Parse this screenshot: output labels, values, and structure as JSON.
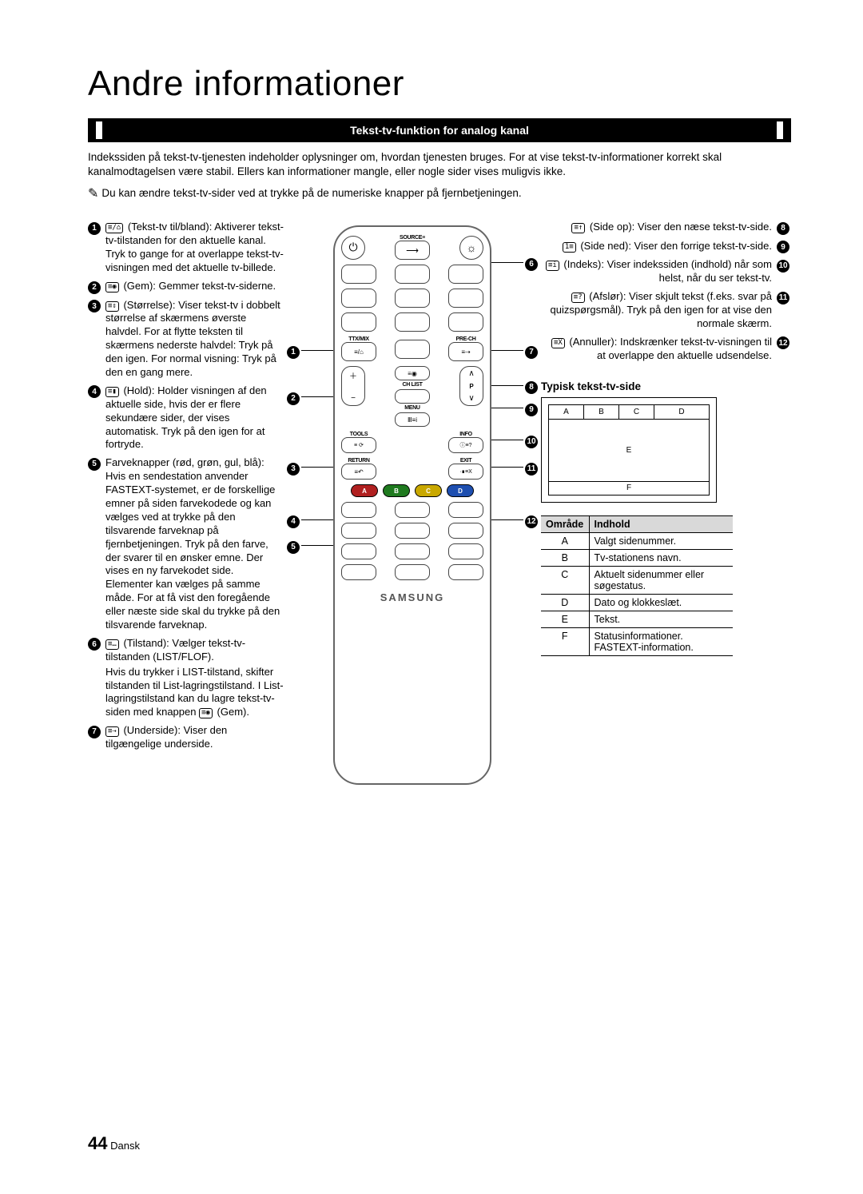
{
  "page": {
    "title": "Andre informationer",
    "section_header": "Tekst-tv-funktion for analog kanal",
    "intro": "Indekssiden på tekst-tv-tjenesten indeholder oplysninger om, hvordan tjenesten bruges. For at vise tekst-tv-informationer korrekt skal kanalmodtagelsen være stabil. Ellers kan informationer mangle, eller nogle sider vises muligvis ikke.",
    "note": "Du kan ændre tekst-tv-sider ved at trykke på de numeriske knapper på fjernbetjeningen.",
    "page_number": "44",
    "lang": "Dansk"
  },
  "left_items": [
    {
      "n": "1",
      "icon": "≡/⌂",
      "label": "(Tekst-tv til/bland):",
      "body": "Aktiverer tekst-tv-tilstanden for den aktuelle kanal. Tryk to gange for at overlappe tekst-tv-visningen med det aktuelle tv-billede."
    },
    {
      "n": "2",
      "icon": "≡◉",
      "label": "(Gem):",
      "body": "Gemmer tekst-tv-siderne."
    },
    {
      "n": "3",
      "icon": "≡⇕",
      "label": "(Størrelse):",
      "body": "Viser tekst-tv i dobbelt størrelse af skærmens øverste halvdel. For at flytte teksten til skærmens nederste halvdel: Tryk på den igen. For normal visning: Tryk på den en gang mere."
    },
    {
      "n": "4",
      "icon": "≡▮",
      "label": "(Hold):",
      "body": "Holder visningen af den aktuelle side, hvis der er flere sekundære sider, der vises automatisk. Tryk på den igen for at fortryde."
    },
    {
      "n": "5",
      "icon": "",
      "label": "Farveknapper (rød, grøn, gul, blå):",
      "body": "Hvis en sendestation anvender FASTEXT-systemet, er de forskellige emner på siden farvekodede og kan vælges ved at trykke på den tilsvarende farveknap på fjernbetjeningen. Tryk på den farve, der svarer til en ønsker emne. Der vises en ny farvekodet side. Elementer kan vælges på samme måde. For at få vist den foregående eller næste side skal du trykke på den tilsvarende farveknap."
    },
    {
      "n": "6",
      "icon": "≡…",
      "label": "(Tilstand):",
      "body": "Vælger tekst-tv-tilstanden (LIST/FLOF).",
      "extra": "Hvis du trykker i LIST-tilstand, skifter tilstanden til List-lagringstilstand. I List-lagringstilstand kan du lagre tekst-tv-siden med knappen",
      "extra_icon": "≡◉",
      "extra_tail": "(Gem)."
    },
    {
      "n": "7",
      "icon": "≡⇢",
      "label": "(Underside):",
      "body": "Viser den tilgængelige underside."
    }
  ],
  "right_items": [
    {
      "n": "8",
      "icon": "≡↑",
      "label": "(Side op):",
      "body": "Viser den næse tekst-tv-side."
    },
    {
      "n": "9",
      "icon": "1≡",
      "label": "(Side ned):",
      "body": "Viser den forrige tekst-tv-side."
    },
    {
      "n": "10",
      "icon": "≡i",
      "label": "(Indeks):",
      "body": "Viser indekssiden (indhold) når som helst, når du ser tekst-tv."
    },
    {
      "n": "11",
      "icon": "≡?",
      "label": "(Afslør):",
      "body": "Viser skjult tekst (f.eks. svar på quizspørgsmål). Tryk på den igen for at vise den normale skærm."
    },
    {
      "n": "12",
      "icon": "≡X",
      "label": "(Annuller):",
      "body": "Indskrænker tekst-tv-visningen til at overlappe den aktuelle udsendelse."
    }
  ],
  "typical": {
    "heading": "Typisk tekst-tv-side",
    "cells": {
      "a": "A",
      "b": "B",
      "c": "C",
      "d": "D",
      "e": "E",
      "f": "F"
    }
  },
  "area_table": {
    "h1": "Område",
    "h2": "Indhold",
    "rows": [
      {
        "k": "A",
        "v": "Valgt sidenummer."
      },
      {
        "k": "B",
        "v": "Tv-stationens navn."
      },
      {
        "k": "C",
        "v": "Aktuelt sidenummer eller søgestatus."
      },
      {
        "k": "D",
        "v": "Dato og klokkeslæt."
      },
      {
        "k": "E",
        "v": "Tekst."
      },
      {
        "k": "F",
        "v": "Statusinformationer. FASTEXT-information."
      }
    ]
  },
  "remote": {
    "source": "SOURCE",
    "ttx": "TTX/MIX",
    "prech": "PRE-CH",
    "chlist": "CH LIST",
    "menu": "MENU",
    "tools": "TOOLS",
    "info": "INFO",
    "ret": "RETURN",
    "exit": "EXIT",
    "p": "P",
    "brand": "SAMSUNG",
    "colors": {
      "a": "A",
      "b": "B",
      "c": "C",
      "d": "D"
    }
  },
  "colors": {
    "red": "#b02020",
    "green": "#1f7a1f",
    "yellow": "#c9a800",
    "blue": "#1e4fb0"
  }
}
